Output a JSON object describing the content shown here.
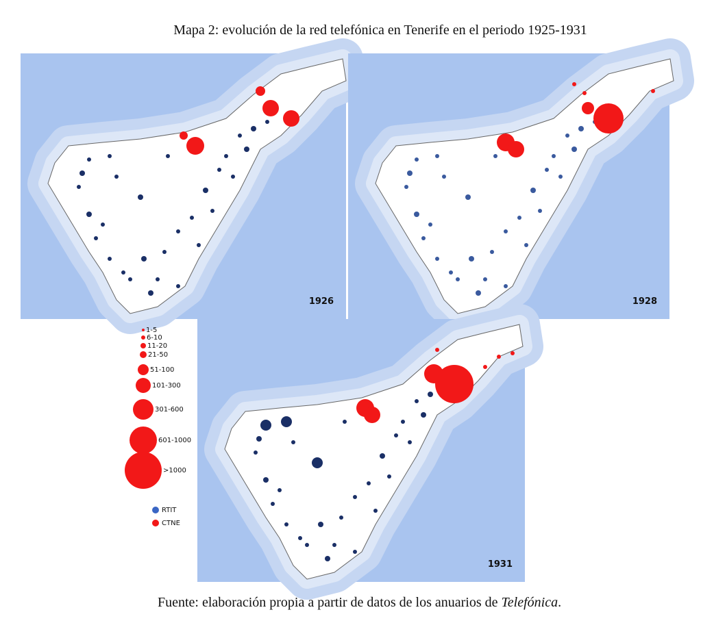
{
  "title": "Mapa 2: evolución de la red telefónica en Tenerife en el periodo 1925-1931",
  "maps": [
    {
      "year": "1926"
    },
    {
      "year": "1928"
    },
    {
      "year": "1931"
    }
  ],
  "legend": {
    "sizes": [
      "1-5",
      "6-10",
      "11-20",
      "21-50",
      "51-100",
      "101-300",
      "301-600",
      "601-1000",
      ">1000"
    ],
    "types": [
      "RTIT",
      "CTNE"
    ]
  },
  "source": {
    "prefix": "Fuente: elaboración propia a partir de datos de los anuarios de ",
    "italic": "Telefónica",
    "suffix": "."
  }
}
